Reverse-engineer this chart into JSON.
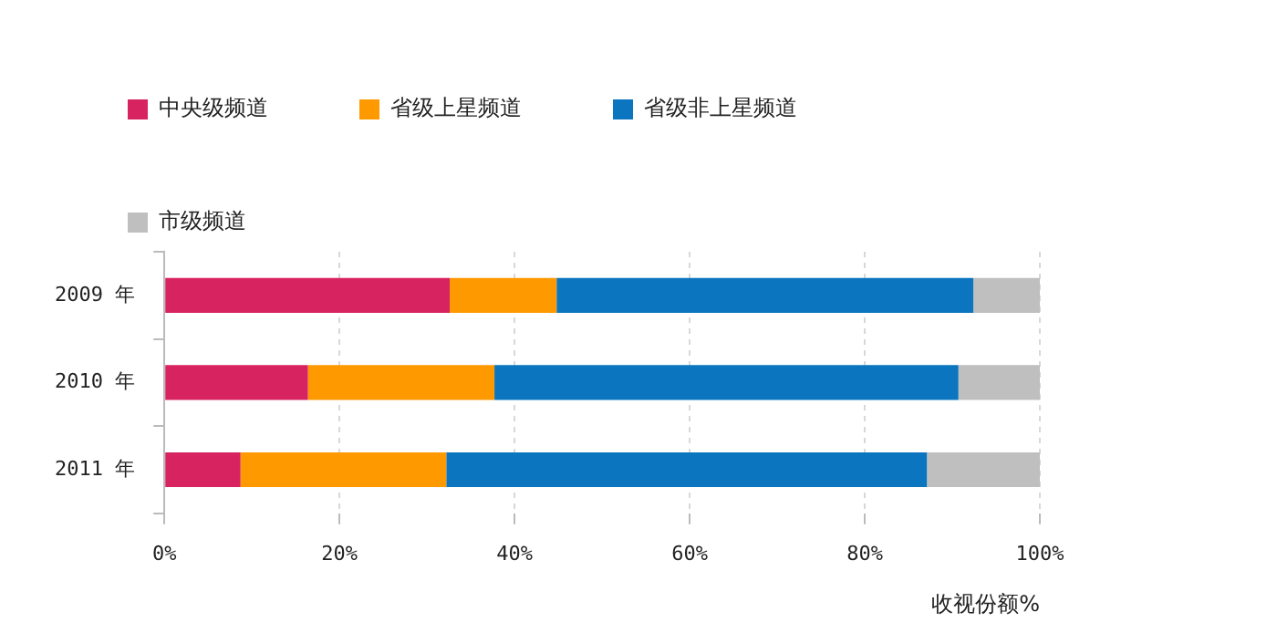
{
  "chart_data": {
    "type": "bar",
    "orientation": "horizontal",
    "stacked": true,
    "xlabel": "收视份额%",
    "categories": [
      "2009 年",
      "2010 年",
      "2011 年"
    ],
    "series": [
      {
        "name": "中央级频道",
        "color": "#d82361",
        "values": [
          32.6,
          16.4,
          8.7
        ]
      },
      {
        "name": "省级上星频道",
        "color": "#ff9900",
        "values": [
          12.2,
          21.3,
          23.5
        ]
      },
      {
        "name": "省级非上星频道",
        "color": "#0b75bf",
        "values": [
          47.6,
          53.0,
          54.9
        ]
      },
      {
        "name": "市级频道",
        "color": "#bfbfbf",
        "values": [
          7.6,
          9.3,
          12.9
        ]
      }
    ],
    "xlim": [
      0,
      100
    ],
    "xticks": [
      {
        "value": 0,
        "label": "0%"
      },
      {
        "value": 20,
        "label": "20%"
      },
      {
        "value": 40,
        "label": "40%"
      },
      {
        "value": 60,
        "label": "60%"
      },
      {
        "value": 80,
        "label": "80%"
      },
      {
        "value": 100,
        "label": "100%"
      }
    ],
    "grid": "x",
    "legend": "top"
  }
}
